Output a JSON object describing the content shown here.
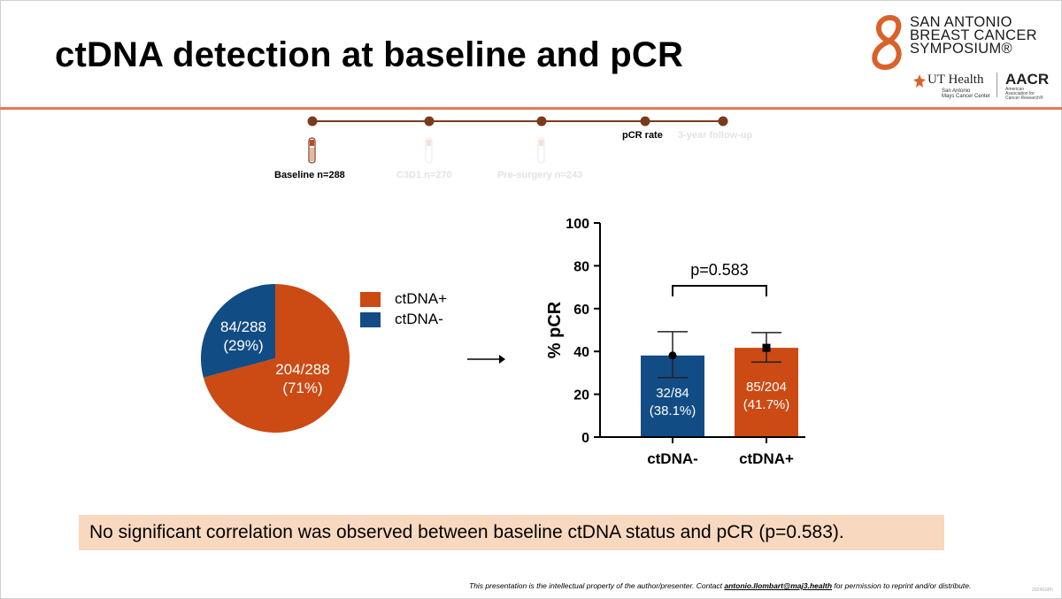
{
  "slide": {
    "title": "ctDNA detection at baseline and pCR",
    "callout": "No significant correlation was observed between baseline ctDNA status and pCR (p=0.583).",
    "footer_prefix": "This presentation is the intellectual property of the author/presenter. Contact ",
    "footer_email": "antonio.llombart@maj3.health",
    "footer_suffix": " for permission to reprint and/or distribute.",
    "slide_id": "2024SSPh"
  },
  "logo": {
    "line1": "SAN ANTONIO",
    "line2": "BREAST CANCER",
    "line3": "SYMPOSIUM®",
    "ut_health": "UT Health",
    "ut_sub1": "San Antonio",
    "ut_sub2": "Mays Cancer Center",
    "aacr": "AACR",
    "aacr_sub": "American Association for Cancer Research®"
  },
  "colors": {
    "orange": "#cc4a14",
    "blue": "#124c85",
    "accent_rule": "#e27c56",
    "timeline": "#7a3a1c",
    "faded": "#e5e5e5"
  },
  "timeline": {
    "points": [
      {
        "label": "Baseline n=288",
        "active": true
      },
      {
        "label": "C3D1 n=270",
        "active": false
      },
      {
        "label": "Pre-surgery n=243",
        "active": false
      },
      {
        "label": "pCR rate",
        "active": true
      },
      {
        "label": "3-year follow-up",
        "active": false
      }
    ]
  },
  "chart_data": [
    {
      "type": "pie",
      "title": "",
      "labels": [
        "ctDNA+",
        "ctDNA-"
      ],
      "values": [
        204,
        84
      ],
      "total": 288,
      "percents": [
        71,
        29
      ],
      "slice_labels": [
        {
          "fraction": "204/288",
          "percent": "(71%)"
        },
        {
          "fraction": "84/288",
          "percent": "(29%)"
        }
      ],
      "legend": [
        {
          "name": "ctDNA+",
          "color": "#cc4a14"
        },
        {
          "name": "ctDNA-",
          "color": "#124c85"
        }
      ],
      "legend_position": "top-right"
    },
    {
      "type": "bar",
      "title": "",
      "categories": [
        "ctDNA-",
        "ctDNA+"
      ],
      "values": [
        38.1,
        41.7
      ],
      "ci_low": [
        27.8,
        35.0
      ],
      "ci_high": [
        49.2,
        48.8
      ],
      "bar_labels": [
        {
          "fraction": "32/84",
          "percent": "(38.1%)"
        },
        {
          "fraction": "85/204",
          "percent": "(41.7%)"
        }
      ],
      "colors": [
        "#124c85",
        "#cc4a14"
      ],
      "markers": [
        "circle",
        "square"
      ],
      "ylabel": "% pCR",
      "xlabel": "",
      "ylim": [
        0,
        100
      ],
      "yticks": [
        0,
        20,
        40,
        60,
        80,
        100
      ],
      "annotation": "p=0.583",
      "grid": false
    }
  ]
}
